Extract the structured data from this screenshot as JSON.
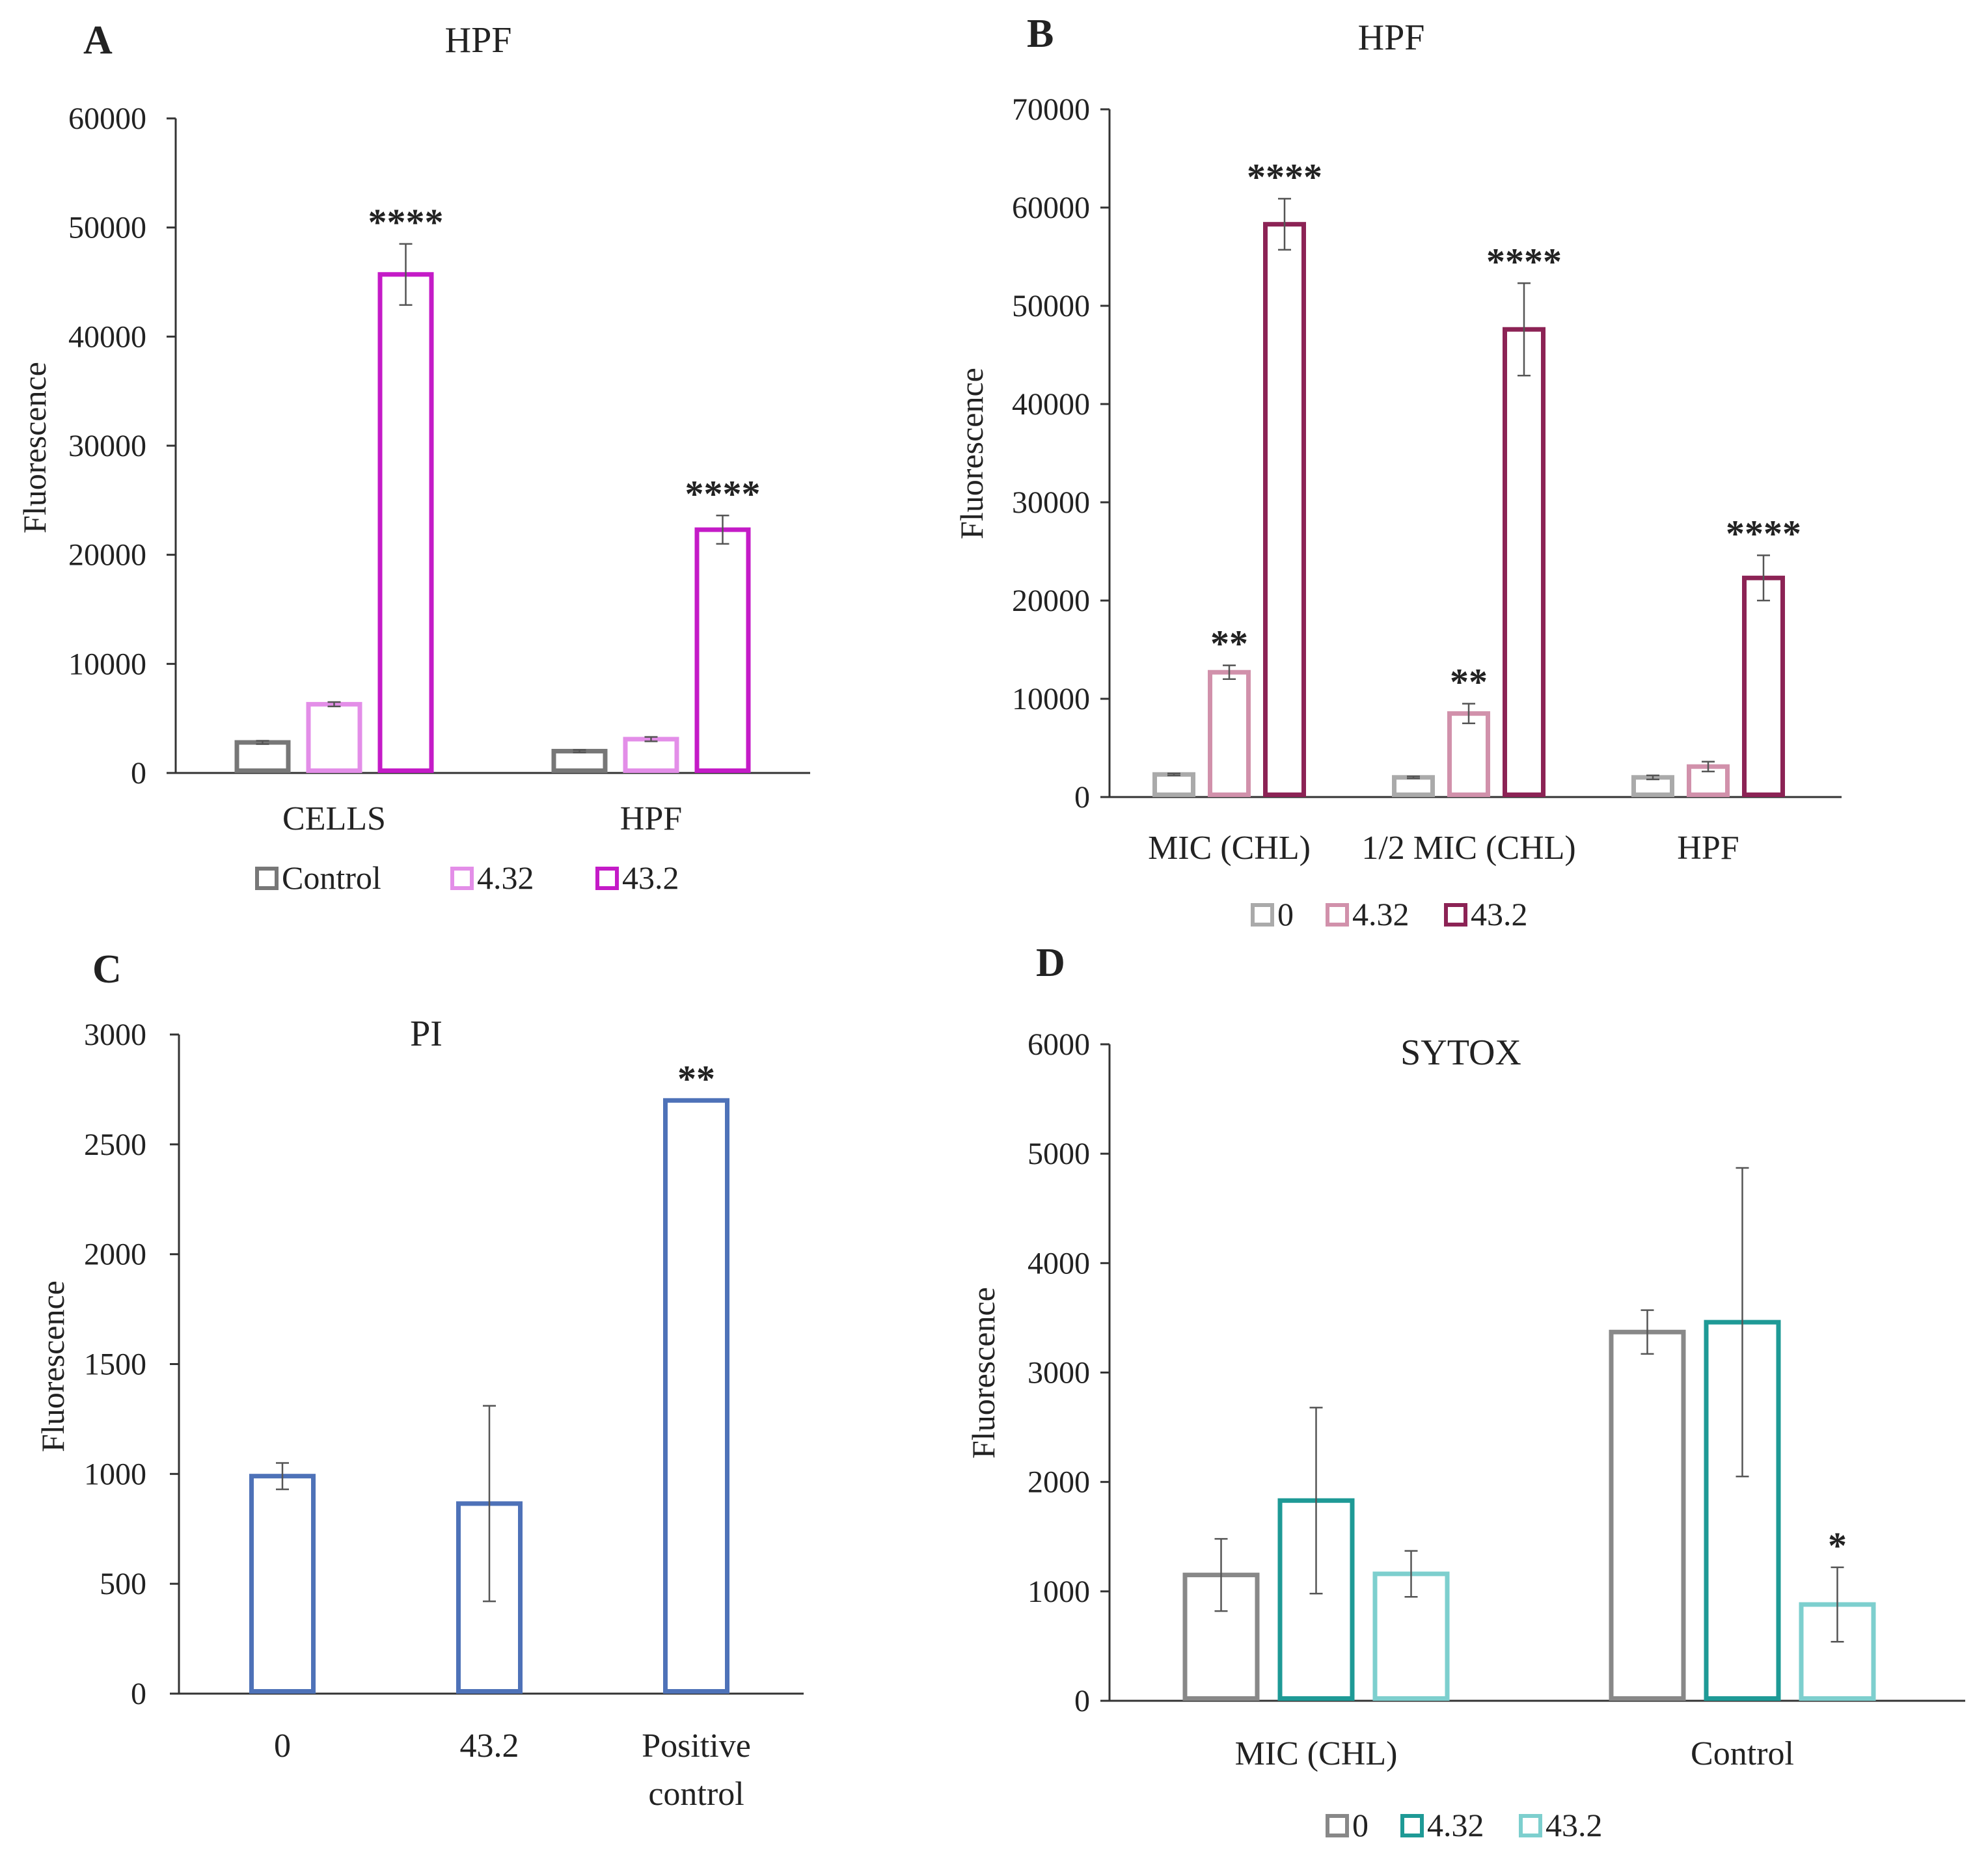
{
  "chart_data": [
    {
      "panel": "A",
      "type": "bar",
      "title": "HPF",
      "ylabel": "Fluorescence",
      "xlabel": "",
      "ylim": [
        0,
        60000
      ],
      "yticks": [
        0,
        10000,
        20000,
        30000,
        40000,
        50000,
        60000
      ],
      "categories": [
        "CELLS",
        "HPF"
      ],
      "legend_position": "bottom",
      "series": [
        {
          "name": "Control",
          "color": "#777777",
          "values": [
            2800,
            2000
          ],
          "errors": [
            150,
            120
          ],
          "sig": [
            "",
            ""
          ]
        },
        {
          "name": "4.32",
          "color": "#e38ee8",
          "values": [
            6300,
            3100
          ],
          "errors": [
            200,
            200
          ],
          "sig": [
            "",
            ""
          ]
        },
        {
          "name": "43.2",
          "color": "#c41bc7",
          "values": [
            45700,
            22300
          ],
          "errors": [
            2800,
            1300
          ],
          "sig": [
            "****",
            "****"
          ]
        }
      ]
    },
    {
      "panel": "B",
      "type": "bar",
      "title": "HPF",
      "ylabel": "Fluorescence",
      "xlabel": "",
      "ylim": [
        0,
        70000
      ],
      "yticks": [
        0,
        10000,
        20000,
        30000,
        40000,
        50000,
        60000,
        70000
      ],
      "categories": [
        "MIC (CHL)",
        "1/2 MIC (CHL)",
        "HPF"
      ],
      "legend_position": "bottom",
      "series": [
        {
          "name": "0",
          "color": "#aaaaaa",
          "values": [
            2300,
            2000,
            2000
          ],
          "errors": [
            100,
            100,
            200
          ],
          "sig": [
            "",
            "",
            ""
          ]
        },
        {
          "name": "4.32",
          "color": "#d191ab",
          "values": [
            12700,
            8500,
            3100
          ],
          "errors": [
            700,
            1000,
            500
          ],
          "sig": [
            "**",
            "**",
            ""
          ]
        },
        {
          "name": "43.2",
          "color": "#8c2355",
          "values": [
            58300,
            47600,
            22300
          ],
          "errors": [
            2600,
            4700,
            2300
          ],
          "sig": [
            "****",
            "****",
            "****"
          ]
        }
      ]
    },
    {
      "panel": "C",
      "type": "bar",
      "title": "PI",
      "ylabel": "Fluorescence",
      "xlabel": "",
      "ylim": [
        0,
        3000
      ],
      "yticks": [
        0,
        500,
        1000,
        1500,
        2000,
        2500,
        3000
      ],
      "categories": [
        "0",
        "43.2",
        "Positive control"
      ],
      "legend_position": "none",
      "series": [
        {
          "name": "",
          "color": "#4e72b8",
          "values": [
            990,
            865,
            2700
          ],
          "errors": [
            60,
            445,
            0
          ],
          "sig": [
            "",
            "",
            "**"
          ]
        }
      ]
    },
    {
      "panel": "D",
      "type": "bar",
      "title": "SYTOX",
      "ylabel": "Fluorescence",
      "xlabel": "",
      "ylim": [
        0,
        6000
      ],
      "yticks": [
        0,
        1000,
        2000,
        3000,
        4000,
        5000,
        6000
      ],
      "categories": [
        "MIC (CHL)",
        "Control"
      ],
      "legend_position": "bottom",
      "series": [
        {
          "name": "0",
          "color": "#888888",
          "values": [
            1150,
            3370
          ],
          "errors": [
            330,
            200
          ],
          "sig": [
            "",
            ""
          ]
        },
        {
          "name": "4.32",
          "color": "#1e9a96",
          "values": [
            1830,
            3460
          ],
          "errors": [
            850,
            1410
          ],
          "sig": [
            "",
            ""
          ]
        },
        {
          "name": "43.2",
          "color": "#7dcfce",
          "values": [
            1160,
            880
          ],
          "errors": [
            210,
            340
          ],
          "sig": [
            "",
            "*"
          ]
        }
      ]
    }
  ]
}
